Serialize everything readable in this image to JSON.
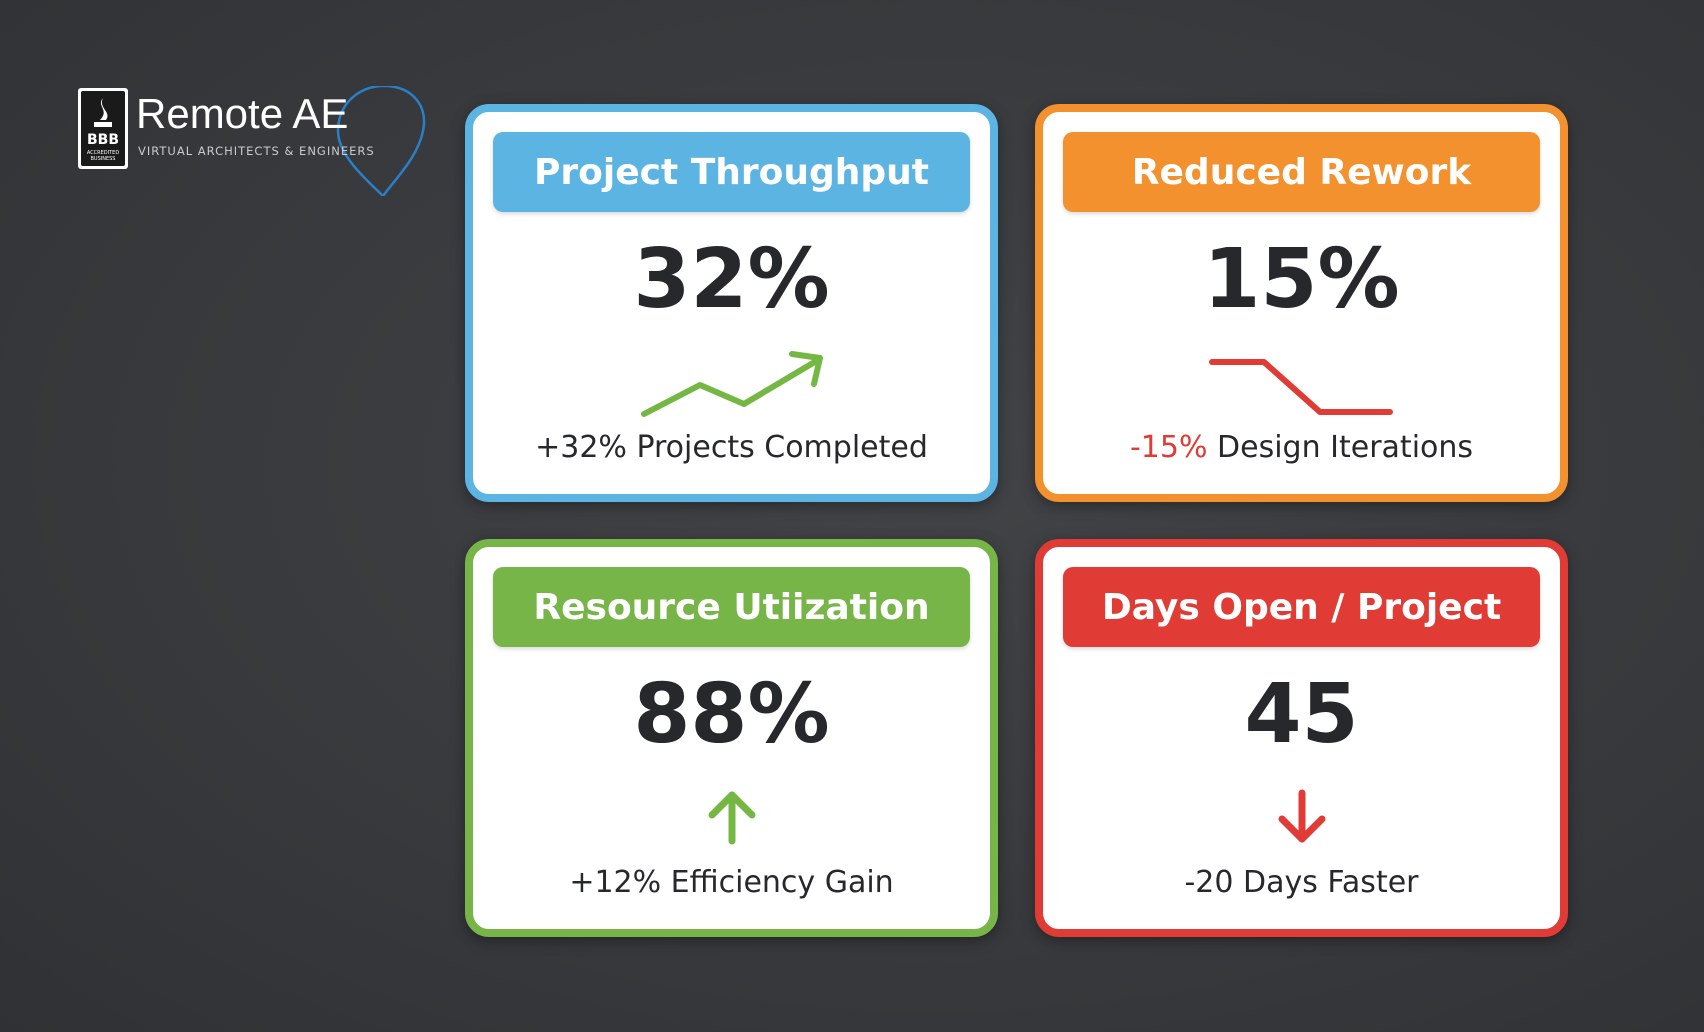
{
  "logo": {
    "badge": "BBB",
    "badge_caption": "ACCREDITED BUSINESS",
    "name": "Remote AE",
    "tagline": "VIRTUAL ARCHITECTS & ENGINEERS"
  },
  "cards": [
    {
      "title": "Project Throughput",
      "value": "32%",
      "caption": "+32% Projects Completed"
    },
    {
      "title": "Reduced Rework",
      "value": "15%",
      "caption_highlight": "-15%",
      "caption": "Design Iterations"
    },
    {
      "title": "Resource Utiization",
      "value": "88%",
      "caption": "+12% Efficiency Gain"
    },
    {
      "title": "Days Open / Project",
      "value": "45",
      "caption": "-20 Days Faster"
    }
  ]
}
